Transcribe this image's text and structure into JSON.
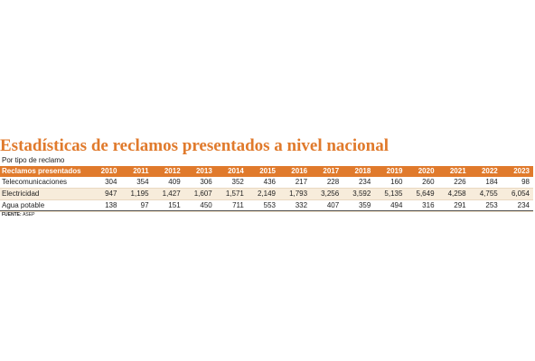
{
  "chart_data": {
    "type": "table",
    "title": "Estadísticas de reclamos presentados a nivel nacional",
    "subtitle": "Por tipo de reclamo",
    "header": [
      "Reclamos presentados",
      "2010",
      "2011",
      "2012",
      "2013",
      "2014",
      "2015",
      "2016",
      "2017",
      "2018",
      "2019",
      "2020",
      "2021",
      "2022",
      "2023"
    ],
    "rows": [
      {
        "label": "Telecomunicaciones",
        "values": [
          "304",
          "354",
          "409",
          "306",
          "352",
          "436",
          "217",
          "228",
          "234",
          "160",
          "260",
          "226",
          "184",
          "98"
        ]
      },
      {
        "label": "Electricidad",
        "values": [
          "947",
          "1,195",
          "1,427",
          "1,607",
          "1,571",
          "2,149",
          "1,793",
          "3,256",
          "3,592",
          "5,135",
          "5,649",
          "4,258",
          "4,755",
          "6,054"
        ]
      },
      {
        "label": "Agua potable",
        "values": [
          "138",
          "97",
          "151",
          "450",
          "711",
          "553",
          "332",
          "407",
          "359",
          "494",
          "316",
          "291",
          "253",
          "234"
        ]
      }
    ],
    "source_label": "FUENTE:",
    "source_value": "ASEP",
    "colors": {
      "accent": "#e07a2c",
      "row_alt": "#f7ecdb"
    }
  }
}
